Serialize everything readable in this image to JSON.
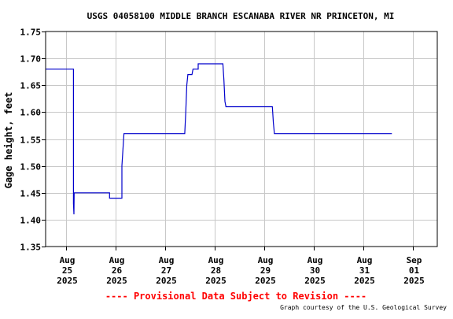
{
  "chart_data": {
    "type": "line",
    "title": "USGS 04058100 MIDDLE BRANCH ESCANABA RIVER NR PRINCETON, MI",
    "ylabel": "Gage height, feet",
    "xlabel": "",
    "ylim": [
      1.35,
      1.75
    ],
    "yticks": [
      "1.35",
      "1.40",
      "1.45",
      "1.50",
      "1.55",
      "1.60",
      "1.65",
      "1.70",
      "1.75"
    ],
    "xlim": [
      "2025-08-24T14:00",
      "2025-09-01T12:00"
    ],
    "xticks": [
      {
        "date": "2025-08-25T00:00",
        "lines": [
          "Aug",
          "25",
          "2025"
        ]
      },
      {
        "date": "2025-08-26T00:00",
        "lines": [
          "Aug",
          "26",
          "2025"
        ]
      },
      {
        "date": "2025-08-27T00:00",
        "lines": [
          "Aug",
          "27",
          "2025"
        ]
      },
      {
        "date": "2025-08-28T00:00",
        "lines": [
          "Aug",
          "28",
          "2025"
        ]
      },
      {
        "date": "2025-08-29T00:00",
        "lines": [
          "Aug",
          "29",
          "2025"
        ]
      },
      {
        "date": "2025-08-30T00:00",
        "lines": [
          "Aug",
          "30",
          "2025"
        ]
      },
      {
        "date": "2025-08-31T00:00",
        "lines": [
          "Aug",
          "31",
          "2025"
        ]
      },
      {
        "date": "2025-09-01T00:00",
        "lines": [
          "Sep",
          "01",
          "2025"
        ]
      }
    ],
    "grid": true,
    "series": [
      {
        "color": "#0000cc",
        "points": [
          [
            "2025-08-24T14:00",
            1.68
          ],
          [
            "2025-08-25T03:30",
            1.68
          ],
          [
            "2025-08-25T03:30",
            1.43
          ],
          [
            "2025-08-25T03:45",
            1.41
          ],
          [
            "2025-08-25T03:50",
            1.45
          ],
          [
            "2025-08-25T21:00",
            1.45
          ],
          [
            "2025-08-25T21:00",
            1.44
          ],
          [
            "2025-08-26T03:00",
            1.44
          ],
          [
            "2025-08-26T03:00",
            1.5
          ],
          [
            "2025-08-26T04:00",
            1.56
          ],
          [
            "2025-08-26T21:00",
            1.56
          ],
          [
            "2025-08-27T09:30",
            1.56
          ],
          [
            "2025-08-27T10:00",
            1.6
          ],
          [
            "2025-08-27T10:30",
            1.65
          ],
          [
            "2025-08-27T11:00",
            1.67
          ],
          [
            "2025-08-27T13:00",
            1.67
          ],
          [
            "2025-08-27T13:30",
            1.68
          ],
          [
            "2025-08-27T16:00",
            1.68
          ],
          [
            "2025-08-27T16:00",
            1.69
          ],
          [
            "2025-08-28T04:00",
            1.69
          ],
          [
            "2025-08-28T04:30",
            1.66
          ],
          [
            "2025-08-28T05:00",
            1.62
          ],
          [
            "2025-08-28T05:30",
            1.61
          ],
          [
            "2025-08-28T22:00",
            1.61
          ],
          [
            "2025-08-29T04:00",
            1.61
          ],
          [
            "2025-08-29T04:30",
            1.58
          ],
          [
            "2025-08-29T05:00",
            1.56
          ],
          [
            "2025-08-31T14:00",
            1.56
          ]
        ]
      }
    ],
    "annotation": "---- Provisional Data Subject to Revision ----",
    "credit": "Graph courtesy of the U.S. Geological Survey"
  },
  "colors": {
    "series": "#0000cc",
    "grid": "#c8c8c8",
    "provisional": "#ff0000"
  }
}
